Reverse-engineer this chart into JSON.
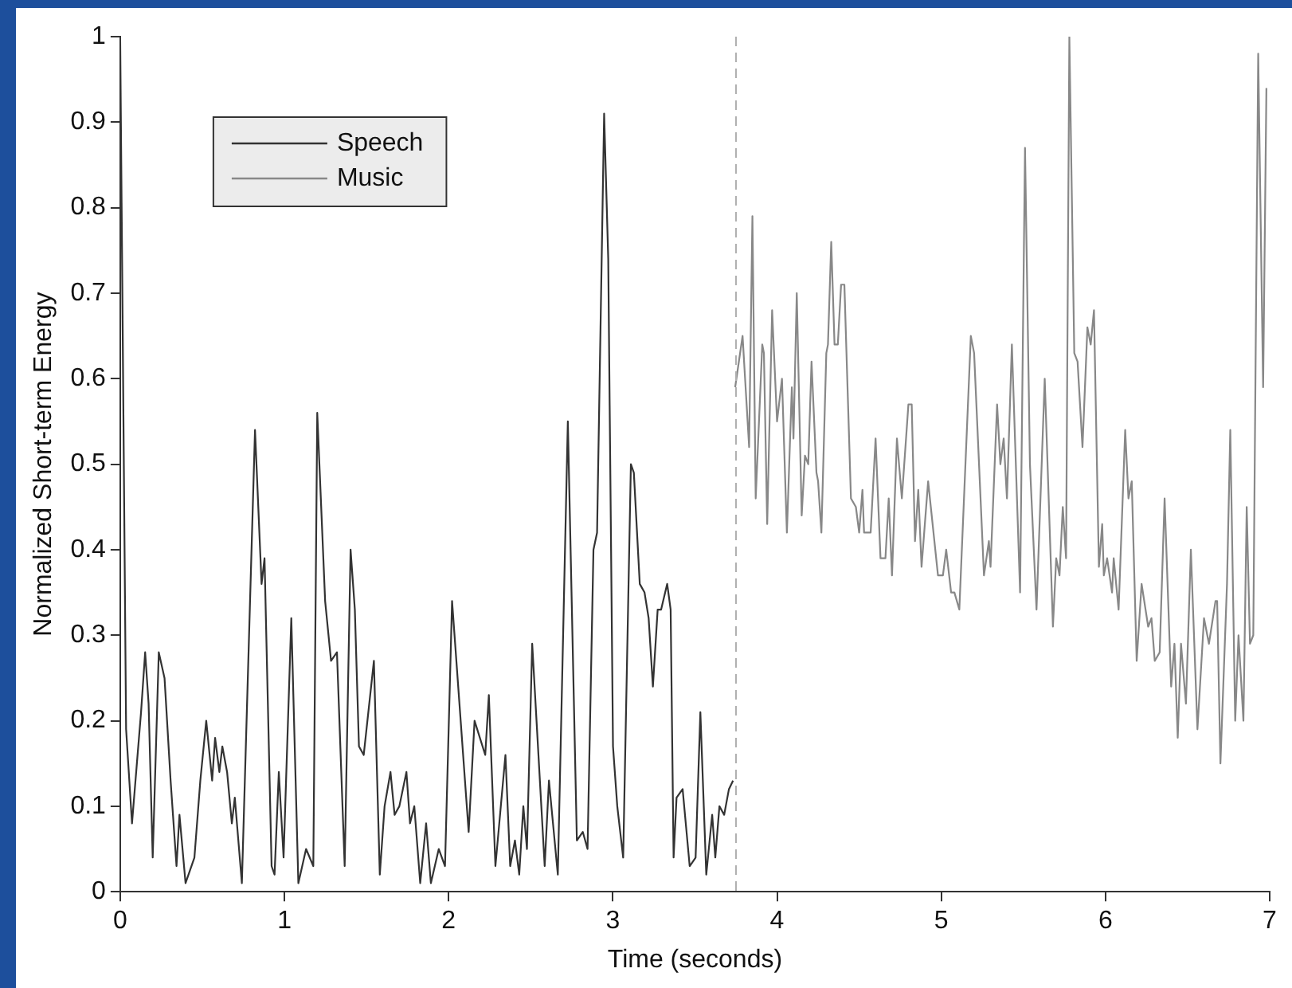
{
  "chart_data": {
    "type": "line",
    "xlabel": "Time (seconds)",
    "ylabel": "Normalized Short-term Energy",
    "xlim": [
      0,
      7
    ],
    "ylim": [
      0,
      1
    ],
    "xticks": [
      0,
      1,
      2,
      3,
      4,
      5,
      6,
      7
    ],
    "yticks": [
      0,
      0.1,
      0.2,
      0.3,
      0.4,
      0.5,
      0.6,
      0.7,
      0.8,
      0.9,
      1
    ],
    "grid": false,
    "legend": "top left",
    "marker": "none",
    "line_style": "solid",
    "ref_lines": [
      {
        "axis": "x",
        "value": 3.75,
        "color": "#b0b0b0",
        "line_style": "dashed"
      }
    ],
    "series": [
      {
        "name": "Speech",
        "color": "#333333",
        "x": [
          0,
          0.036,
          0.072,
          0.127,
          0.152,
          0.173,
          0.198,
          0.235,
          0.27,
          0.307,
          0.343,
          0.361,
          0.398,
          0.452,
          0.488,
          0.524,
          0.56,
          0.578,
          0.604,
          0.622,
          0.651,
          0.68,
          0.698,
          0.741,
          0.821,
          0.861,
          0.879,
          0.922,
          0.94,
          0.966,
          0.995,
          1.042,
          1.085,
          1.132,
          1.176,
          1.2,
          1.248,
          1.284,
          1.32,
          1.367,
          1.403,
          1.429,
          1.454,
          1.483,
          1.545,
          1.581,
          1.61,
          1.646,
          1.671,
          1.7,
          1.743,
          1.765,
          1.791,
          1.827,
          1.863,
          1.892,
          1.94,
          1.978,
          2.021,
          2.122,
          2.158,
          2.223,
          2.245,
          2.285,
          2.346,
          2.375,
          2.404,
          2.43,
          2.455,
          2.477,
          2.509,
          2.585,
          2.611,
          2.665,
          2.726,
          2.781,
          2.817,
          2.846,
          2.882,
          2.904,
          2.947,
          2.972,
          3.001,
          3.027,
          3.063,
          3.11,
          3.128,
          3.164,
          3.193,
          3.218,
          3.244,
          3.273,
          3.294,
          3.331,
          3.352,
          3.37,
          3.388,
          3.425,
          3.468,
          3.504,
          3.533,
          3.569,
          3.605,
          3.624,
          3.649,
          3.678,
          3.707,
          3.732
        ],
        "values": [
          1,
          0.19,
          0.08,
          0.21,
          0.28,
          0.22,
          0.04,
          0.28,
          0.25,
          0.13,
          0.03,
          0.09,
          0.01,
          0.04,
          0.13,
          0.2,
          0.13,
          0.18,
          0.14,
          0.17,
          0.14,
          0.08,
          0.11,
          0.01,
          0.54,
          0.36,
          0.39,
          0.03,
          0.02,
          0.14,
          0.04,
          0.32,
          0.01,
          0.05,
          0.03,
          0.56,
          0.34,
          0.27,
          0.28,
          0.03,
          0.4,
          0.33,
          0.17,
          0.16,
          0.27,
          0.02,
          0.1,
          0.14,
          0.09,
          0.1,
          0.14,
          0.08,
          0.1,
          0.01,
          0.08,
          0.01,
          0.05,
          0.03,
          0.34,
          0.07,
          0.2,
          0.16,
          0.23,
          0.03,
          0.16,
          0.03,
          0.06,
          0.02,
          0.1,
          0.05,
          0.29,
          0.03,
          0.13,
          0.02,
          0.55,
          0.06,
          0.07,
          0.05,
          0.4,
          0.42,
          0.91,
          0.74,
          0.17,
          0.1,
          0.04,
          0.5,
          0.49,
          0.36,
          0.35,
          0.32,
          0.24,
          0.33,
          0.33,
          0.36,
          0.33,
          0.04,
          0.11,
          0.12,
          0.03,
          0.04,
          0.21,
          0.02,
          0.09,
          0.04,
          0.1,
          0.09,
          0.12,
          0.13
        ]
      },
      {
        "name": "Music",
        "color": "#888888",
        "x": [
          3.745,
          3.79,
          3.83,
          3.85,
          3.87,
          3.91,
          3.92,
          3.94,
          3.97,
          4.0,
          4.03,
          4.06,
          4.09,
          4.1,
          4.12,
          4.15,
          4.17,
          4.19,
          4.21,
          4.24,
          4.25,
          4.27,
          4.3,
          4.31,
          4.33,
          4.35,
          4.37,
          4.39,
          4.41,
          4.45,
          4.48,
          4.5,
          4.52,
          4.53,
          4.57,
          4.6,
          4.63,
          4.66,
          4.68,
          4.7,
          4.73,
          4.76,
          4.8,
          4.82,
          4.84,
          4.86,
          4.88,
          4.92,
          4.98,
          5.01,
          5.03,
          5.06,
          5.08,
          5.11,
          5.18,
          5.2,
          5.26,
          5.29,
          5.3,
          5.34,
          5.36,
          5.38,
          5.4,
          5.43,
          5.48,
          5.51,
          5.54,
          5.58,
          5.63,
          5.68,
          5.7,
          5.72,
          5.74,
          5.76,
          5.78,
          5.81,
          5.83,
          5.86,
          5.89,
          5.91,
          5.93,
          5.96,
          5.98,
          5.99,
          6.01,
          6.04,
          6.05,
          6.08,
          6.12,
          6.14,
          6.16,
          6.19,
          6.22,
          6.26,
          6.28,
          6.3,
          6.33,
          6.36,
          6.4,
          6.42,
          6.44,
          6.46,
          6.49,
          6.52,
          6.56,
          6.6,
          6.63,
          6.67,
          6.68,
          6.7,
          6.74,
          6.76,
          6.79,
          6.81,
          6.84,
          6.86,
          6.88,
          6.9,
          6.93,
          6.96,
          6.98
        ],
        "values": [
          0.59,
          0.65,
          0.52,
          0.79,
          0.46,
          0.64,
          0.63,
          0.43,
          0.68,
          0.55,
          0.6,
          0.42,
          0.59,
          0.53,
          0.7,
          0.44,
          0.51,
          0.5,
          0.62,
          0.49,
          0.48,
          0.42,
          0.63,
          0.64,
          0.76,
          0.64,
          0.64,
          0.71,
          0.71,
          0.46,
          0.45,
          0.42,
          0.47,
          0.42,
          0.42,
          0.53,
          0.39,
          0.39,
          0.46,
          0.37,
          0.53,
          0.46,
          0.57,
          0.57,
          0.41,
          0.47,
          0.38,
          0.48,
          0.37,
          0.37,
          0.4,
          0.35,
          0.35,
          0.33,
          0.65,
          0.63,
          0.37,
          0.41,
          0.38,
          0.57,
          0.5,
          0.53,
          0.46,
          0.64,
          0.35,
          0.87,
          0.5,
          0.33,
          0.6,
          0.31,
          0.39,
          0.37,
          0.45,
          0.39,
          1,
          0.63,
          0.62,
          0.52,
          0.66,
          0.64,
          0.68,
          0.38,
          0.43,
          0.37,
          0.39,
          0.35,
          0.39,
          0.33,
          0.54,
          0.46,
          0.48,
          0.27,
          0.36,
          0.31,
          0.32,
          0.27,
          0.28,
          0.46,
          0.24,
          0.29,
          0.18,
          0.29,
          0.22,
          0.4,
          0.19,
          0.32,
          0.29,
          0.34,
          0.34,
          0.15,
          0.36,
          0.54,
          0.2,
          0.3,
          0.2,
          0.45,
          0.29,
          0.3,
          0.98,
          0.59,
          0.94
        ]
      }
    ]
  }
}
